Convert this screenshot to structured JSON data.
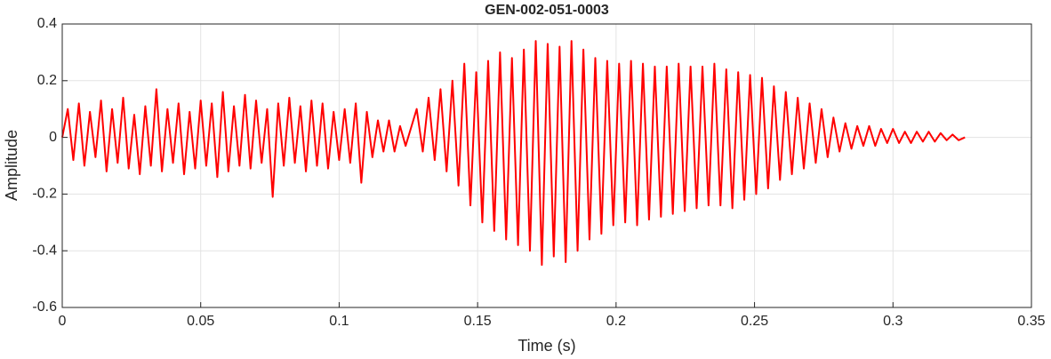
{
  "chart_data": {
    "type": "line",
    "title": "GEN-002-051-0003",
    "x_label": "Time (s)",
    "y_label": "Amplitude",
    "xlim": [
      0,
      0.35
    ],
    "xticks": [
      0,
      0.05,
      0.1,
      0.15,
      0.2,
      0.25,
      0.3,
      0.35
    ],
    "ylim": [
      -0.6,
      0.4
    ],
    "yticks": [
      -0.6,
      -0.4,
      -0.2,
      0,
      0.2,
      0.4
    ],
    "grid": true,
    "x": [
      0,
      0.002,
      0.004,
      0.006,
      0.008,
      0.01,
      0.012,
      0.014,
      0.016,
      0.018,
      0.02,
      0.022,
      0.024,
      0.026,
      0.028,
      0.03,
      0.032,
      0.034,
      0.036,
      0.038,
      0.04,
      0.042,
      0.044,
      0.046,
      0.048,
      0.05,
      0.052,
      0.054,
      0.056,
      0.058,
      0.06,
      0.062,
      0.064,
      0.066,
      0.068,
      0.07,
      0.072,
      0.074,
      0.076,
      0.078,
      0.08,
      0.082,
      0.084,
      0.086,
      0.088,
      0.09,
      0.092,
      0.094,
      0.096,
      0.098,
      0.1,
      0.102,
      0.104,
      0.106,
      0.108,
      0.11,
      0.112,
      0.114,
      0.116,
      0.118,
      0.12,
      0.122,
      0.124,
      0.128,
      0.1302,
      0.1323,
      0.1345,
      0.1366,
      0.1388,
      0.1409,
      0.1431,
      0.1452,
      0.1474,
      0.1495,
      0.1517,
      0.1538,
      0.156,
      0.1581,
      0.1603,
      0.1624,
      0.1646,
      0.1667,
      0.1689,
      0.171,
      0.1732,
      0.1753,
      0.1775,
      0.1796,
      0.1818,
      0.1839,
      0.1861,
      0.1882,
      0.1904,
      0.1925,
      0.1947,
      0.1968,
      0.199,
      0.2011,
      0.2033,
      0.2054,
      0.2076,
      0.2097,
      0.2119,
      0.214,
      0.2162,
      0.2183,
      0.2205,
      0.2226,
      0.2248,
      0.2269,
      0.2291,
      0.2312,
      0.2334,
      0.2355,
      0.2377,
      0.2398,
      0.242,
      0.2441,
      0.2463,
      0.2484,
      0.2506,
      0.2527,
      0.2549,
      0.257,
      0.2592,
      0.2613,
      0.2635,
      0.2656,
      0.2678,
      0.2699,
      0.2721,
      0.2742,
      0.2764,
      0.2785,
      0.2807,
      0.2828,
      0.285,
      0.2871,
      0.2893,
      0.2914,
      0.2936,
      0.2957,
      0.2979,
      0.3,
      0.3022,
      0.3043,
      0.3065,
      0.3086,
      0.3108,
      0.3129,
      0.3151,
      0.3172,
      0.3194,
      0.3215,
      0.3237,
      0.326
    ],
    "series": [
      {
        "color": "#ff0000",
        "values": [
          0,
          0.1,
          -0.08,
          0.12,
          -0.1,
          0.09,
          -0.07,
          0.13,
          -0.12,
          0.1,
          -0.09,
          0.14,
          -0.11,
          0.08,
          -0.13,
          0.11,
          -0.1,
          0.17,
          -0.12,
          0.1,
          -0.09,
          0.12,
          -0.13,
          0.09,
          -0.11,
          0.13,
          -0.1,
          0.12,
          -0.14,
          0.16,
          -0.12,
          0.11,
          -0.1,
          0.15,
          -0.11,
          0.13,
          -0.09,
          0.1,
          -0.21,
          0.12,
          -0.1,
          0.14,
          -0.09,
          0.11,
          -0.12,
          0.13,
          -0.1,
          0.12,
          -0.11,
          0.09,
          -0.08,
          0.1,
          -0.09,
          0.12,
          -0.16,
          0.09,
          -0.07,
          0.06,
          -0.05,
          0.06,
          -0.05,
          0.04,
          -0.03,
          0.1,
          -0.05,
          0.14,
          -0.08,
          0.17,
          -0.12,
          0.2,
          -0.17,
          0.26,
          -0.24,
          0.23,
          -0.3,
          0.27,
          -0.33,
          0.3,
          -0.36,
          0.28,
          -0.38,
          0.31,
          -0.4,
          0.34,
          -0.45,
          0.33,
          -0.42,
          0.32,
          -0.44,
          0.34,
          -0.4,
          0.31,
          -0.36,
          0.28,
          -0.34,
          0.27,
          -0.31,
          0.26,
          -0.3,
          0.27,
          -0.31,
          0.26,
          -0.29,
          0.25,
          -0.28,
          0.25,
          -0.27,
          0.26,
          -0.26,
          0.25,
          -0.25,
          0.25,
          -0.24,
          0.26,
          -0.24,
          0.24,
          -0.25,
          0.23,
          -0.22,
          0.22,
          -0.2,
          0.21,
          -0.18,
          0.18,
          -0.15,
          0.16,
          -0.13,
          0.14,
          -0.11,
          0.12,
          -0.09,
          0.1,
          -0.07,
          0.07,
          -0.05,
          0.05,
          -0.04,
          0.04,
          -0.03,
          0.04,
          -0.03,
          0.03,
          -0.02,
          0.03,
          -0.02,
          0.02,
          -0.02,
          0.02,
          -0.015,
          0.02,
          -0.015,
          0.015,
          -0.01,
          0.01,
          -0.01,
          0
        ]
      }
    ]
  }
}
